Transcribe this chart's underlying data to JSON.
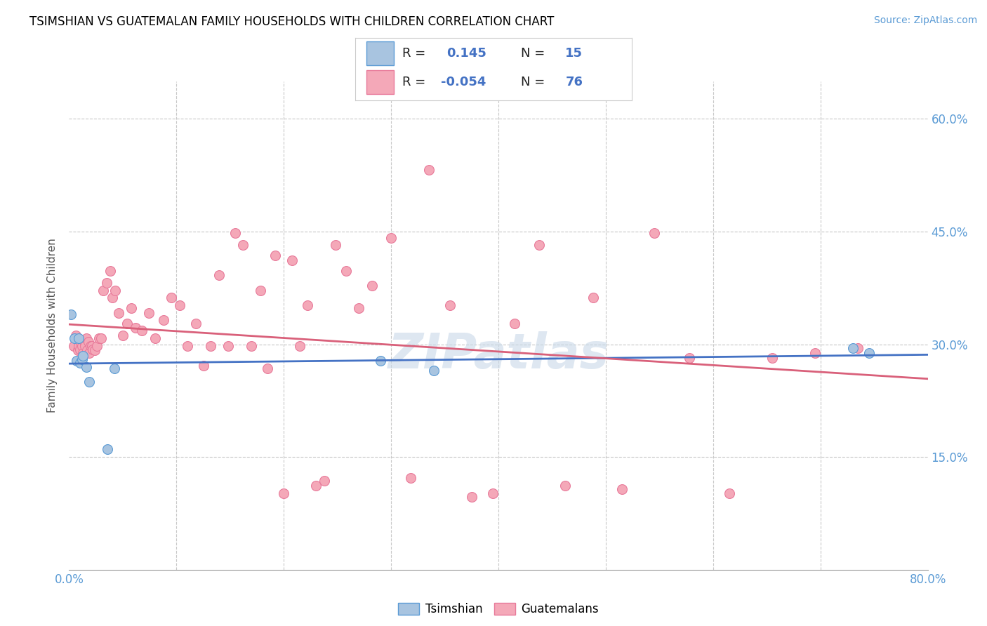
{
  "title": "TSIMSHIAN VS GUATEMALAN FAMILY HOUSEHOLDS WITH CHILDREN CORRELATION CHART",
  "source": "Source: ZipAtlas.com",
  "ylabel": "Family Households with Children",
  "xlim": [
    0.0,
    0.8
  ],
  "ylim": [
    0.0,
    0.65
  ],
  "tsimshian_color": "#a8c4e0",
  "guatemalan_color": "#f4a8b8",
  "tsimshian_edge": "#5b9bd5",
  "guatemalan_edge": "#e87a9a",
  "line_tsimshian": "#4472c4",
  "line_guatemalan": "#d9607a",
  "tsimshian_x": [
    0.002,
    0.005,
    0.007,
    0.009,
    0.01,
    0.012,
    0.013,
    0.016,
    0.019,
    0.036,
    0.042,
    0.29,
    0.34,
    0.73,
    0.745
  ],
  "tsimshian_y": [
    0.34,
    0.308,
    0.278,
    0.308,
    0.275,
    0.28,
    0.285,
    0.27,
    0.25,
    0.16,
    0.268,
    0.278,
    0.265,
    0.295,
    0.288
  ],
  "guatemalan_x": [
    0.004,
    0.006,
    0.008,
    0.009,
    0.01,
    0.011,
    0.012,
    0.013,
    0.014,
    0.015,
    0.016,
    0.017,
    0.018,
    0.019,
    0.02,
    0.021,
    0.022,
    0.024,
    0.026,
    0.028,
    0.03,
    0.032,
    0.035,
    0.038,
    0.04,
    0.043,
    0.046,
    0.05,
    0.054,
    0.058,
    0.062,
    0.068,
    0.074,
    0.08,
    0.088,
    0.095,
    0.103,
    0.11,
    0.118,
    0.125,
    0.132,
    0.14,
    0.148,
    0.155,
    0.162,
    0.17,
    0.178,
    0.185,
    0.192,
    0.2,
    0.208,
    0.215,
    0.222,
    0.23,
    0.238,
    0.248,
    0.258,
    0.27,
    0.282,
    0.3,
    0.318,
    0.335,
    0.355,
    0.375,
    0.395,
    0.415,
    0.438,
    0.462,
    0.488,
    0.515,
    0.545,
    0.578,
    0.615,
    0.655,
    0.695,
    0.735
  ],
  "guatemalan_y": [
    0.298,
    0.312,
    0.292,
    0.298,
    0.293,
    0.302,
    0.298,
    0.288,
    0.303,
    0.298,
    0.308,
    0.292,
    0.303,
    0.288,
    0.298,
    0.298,
    0.293,
    0.292,
    0.298,
    0.308,
    0.308,
    0.372,
    0.382,
    0.398,
    0.362,
    0.372,
    0.342,
    0.312,
    0.328,
    0.348,
    0.322,
    0.318,
    0.342,
    0.308,
    0.332,
    0.362,
    0.352,
    0.298,
    0.328,
    0.272,
    0.298,
    0.392,
    0.298,
    0.448,
    0.432,
    0.298,
    0.372,
    0.268,
    0.418,
    0.102,
    0.412,
    0.298,
    0.352,
    0.112,
    0.118,
    0.432,
    0.398,
    0.348,
    0.378,
    0.442,
    0.122,
    0.532,
    0.352,
    0.097,
    0.102,
    0.328,
    0.432,
    0.112,
    0.362,
    0.107,
    0.448,
    0.282,
    0.102,
    0.282,
    0.288,
    0.295
  ]
}
